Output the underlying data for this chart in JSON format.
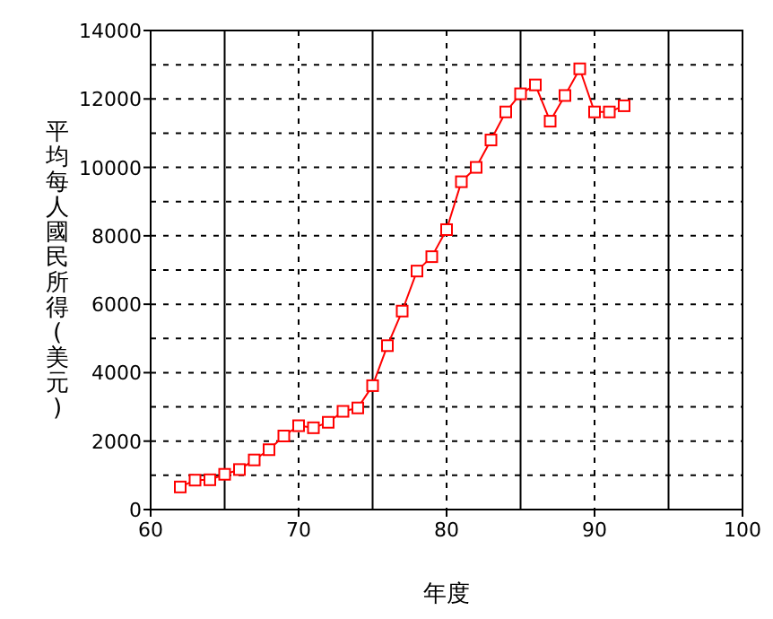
{
  "chart_data": {
    "type": "line",
    "xlabel": "年度",
    "ylabel": "平均每人國民所得(美元)",
    "x": [
      62,
      63,
      64,
      65,
      66,
      67,
      68,
      69,
      70,
      71,
      72,
      73,
      74,
      75,
      76,
      77,
      78,
      79,
      80,
      81,
      82,
      83,
      84,
      85,
      86,
      87,
      88,
      89,
      90,
      91,
      92
    ],
    "values": [
      660,
      860,
      870,
      1030,
      1170,
      1450,
      1750,
      2150,
      2450,
      2390,
      2550,
      2870,
      2970,
      3620,
      4790,
      5800,
      6970,
      7390,
      8180,
      9580,
      10000,
      10800,
      11620,
      12150,
      12410,
      11350,
      12100,
      12880,
      11620,
      11620,
      11800
    ],
    "color": "#ff0000",
    "marker": "square",
    "xlim": [
      60,
      100
    ],
    "ylim": [
      0,
      14000
    ],
    "xticks": [
      60,
      70,
      80,
      90,
      100
    ],
    "yticks": [
      0,
      {
        "value": 1000,
        "label": null
      },
      2000,
      {
        "value": 3000,
        "label": null
      },
      4000,
      {
        "value": 5000,
        "label": null
      },
      6000,
      {
        "value": 7000,
        "label": null
      },
      8000,
      {
        "value": 9000,
        "label": null
      },
      10000,
      {
        "value": 11000,
        "label": null
      },
      12000,
      {
        "value": 13000,
        "label": null
      },
      14000
    ],
    "grid": true,
    "ref_lines": [
      {
        "axis": "x",
        "value": 65,
        "line_style": "solid"
      },
      {
        "axis": "x",
        "value": 75,
        "line_style": "solid"
      },
      {
        "axis": "x",
        "value": 85,
        "line_style": "solid"
      },
      {
        "axis": "x",
        "value": 95,
        "line_style": "solid"
      }
    ]
  }
}
